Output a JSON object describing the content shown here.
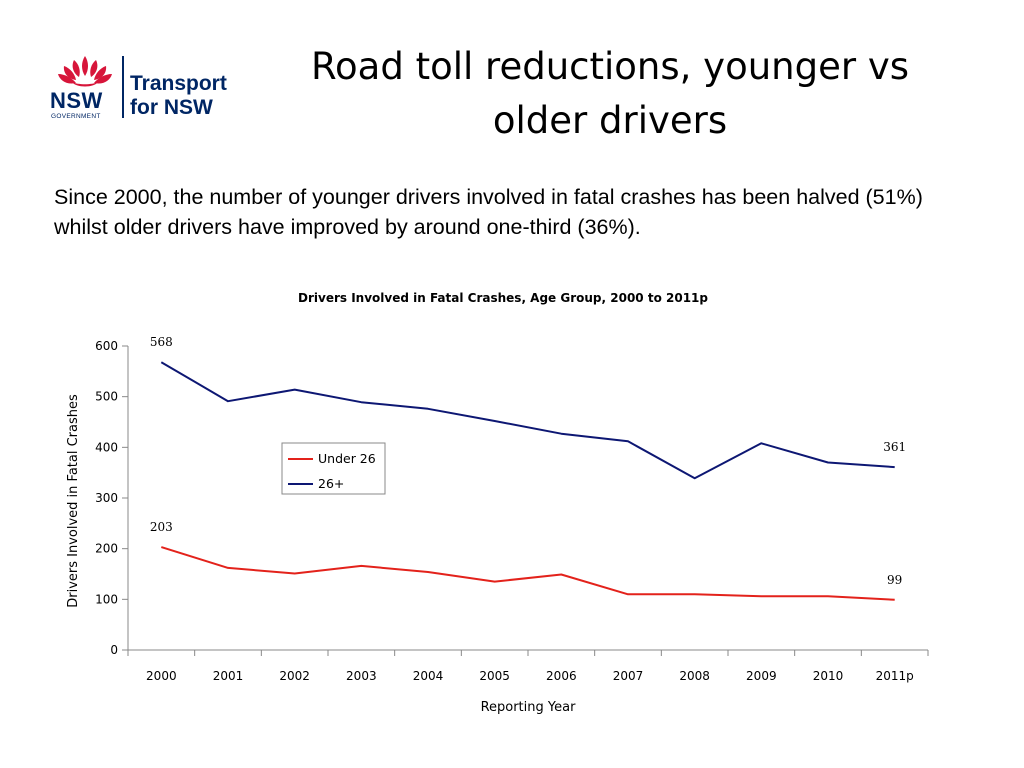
{
  "logo": {
    "nsw": "NSW",
    "government": "GOVERNMENT",
    "brand_line1": "Transport",
    "brand_line2": "for NSW",
    "colors": {
      "navy": "#002664",
      "red": "#d7153a"
    }
  },
  "slide": {
    "title_line1": "Road toll reductions, younger vs",
    "title_line2": "older drivers",
    "intro": "Since 2000, the number of younger drivers involved in fatal crashes has been halved (51%) whilst older drivers have improved by around one-third (36%)."
  },
  "chart_data": {
    "type": "line",
    "title": "Drivers Involved in Fatal Crashes, Age Group, 2000 to 2011p",
    "xlabel": "Reporting Year",
    "ylabel": "Drivers Involved in Fatal Crashes",
    "categories": [
      "2000",
      "2001",
      "2002",
      "2003",
      "2004",
      "2005",
      "2006",
      "2007",
      "2008",
      "2009",
      "2010",
      "2011p"
    ],
    "ylim": [
      0,
      600
    ],
    "yticks": [
      0,
      100,
      200,
      300,
      400,
      500,
      600
    ],
    "grid": false,
    "legend_position": "center-left",
    "series": [
      {
        "name": "Under 26",
        "color": "#e3221b",
        "values": [
          203,
          162,
          151,
          166,
          154,
          135,
          149,
          110,
          110,
          106,
          106,
          99
        ]
      },
      {
        "name": "26+",
        "color": "#0d1773",
        "values": [
          568,
          491,
          514,
          489,
          476,
          452,
          427,
          412,
          339,
          408,
          370,
          361
        ]
      }
    ],
    "data_labels": [
      {
        "series": 1,
        "index": 0,
        "text": "568"
      },
      {
        "series": 1,
        "index": 11,
        "text": "361"
      },
      {
        "series": 0,
        "index": 0,
        "text": "203"
      },
      {
        "series": 0,
        "index": 11,
        "text": "99"
      }
    ]
  }
}
